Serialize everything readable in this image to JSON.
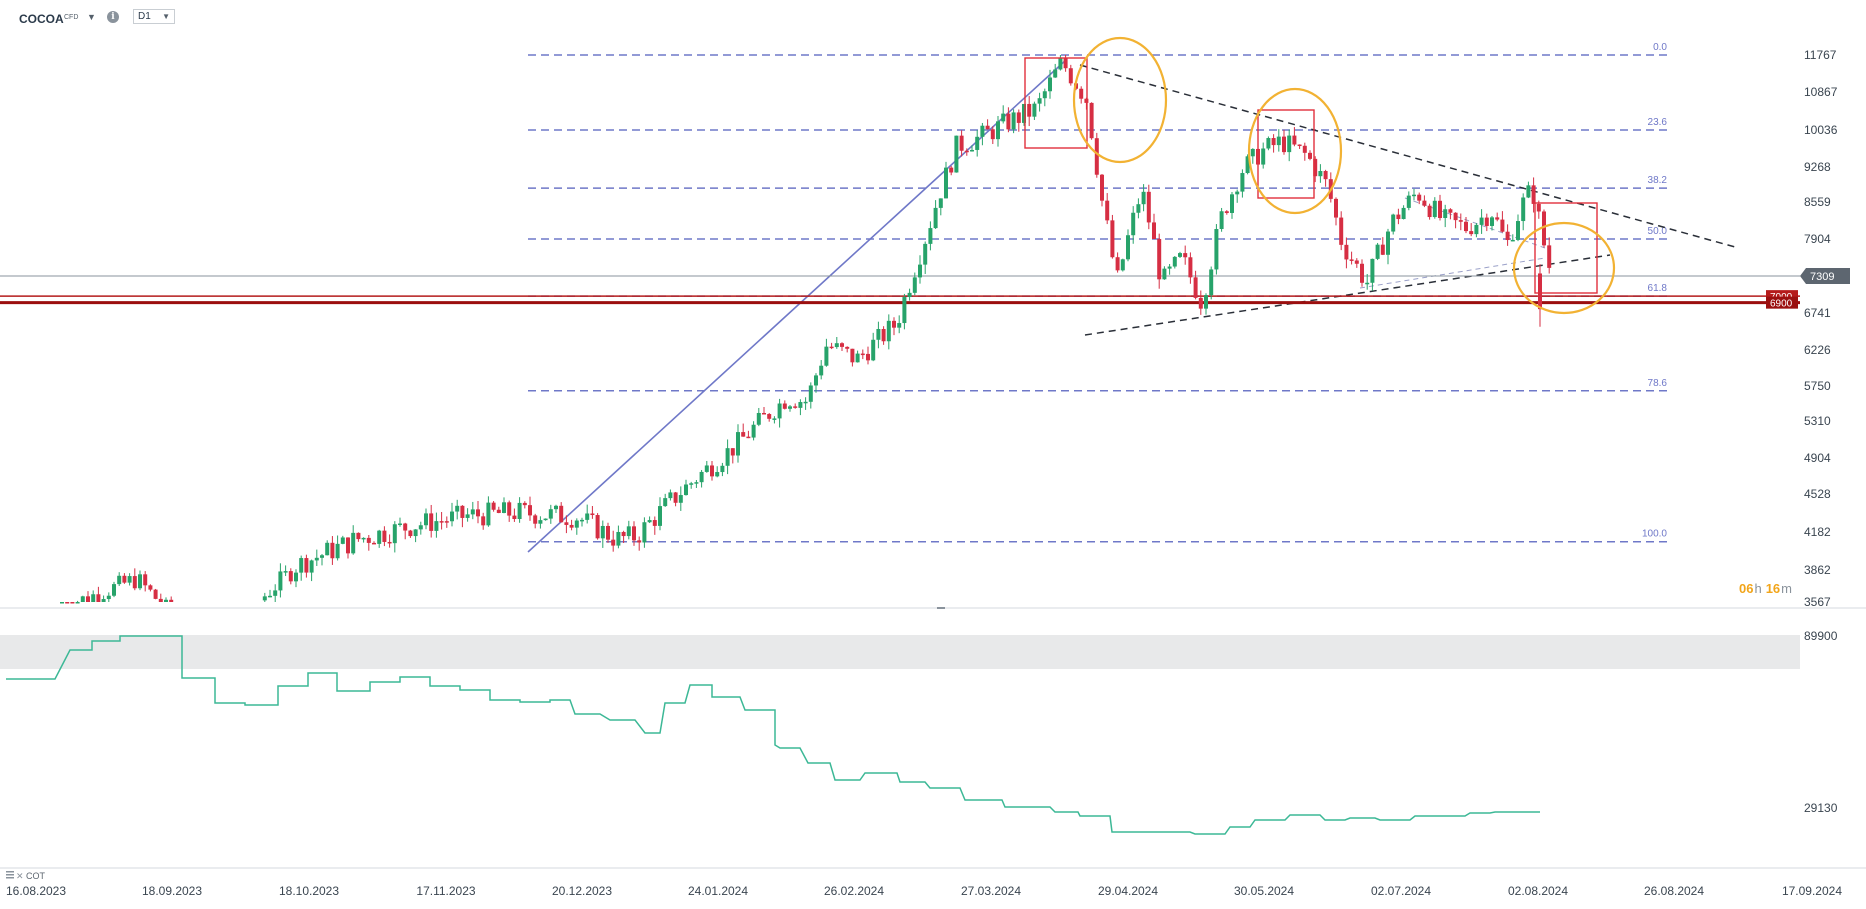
{
  "header": {
    "symbol": "COCOA",
    "symbol_type": "CFD",
    "info_icon": "info-icon",
    "timeframe": "D1"
  },
  "countdown": {
    "hours": "06",
    "h_unit": "h",
    "minutes": "16",
    "m_unit": "m"
  },
  "indicator_label": "COT",
  "chart_data": [
    {
      "type": "candlestick",
      "title": "",
      "y_ticks": [
        11767,
        10867,
        10036,
        9268,
        8559,
        7904,
        6741,
        6226,
        5750,
        5310,
        4904,
        4528,
        4182,
        3862,
        3567
      ],
      "ylim": [
        3567,
        11767
      ],
      "price_tags": [
        {
          "label": "7309",
          "value": 7309,
          "color": "#5d6670"
        },
        {
          "label": "7000",
          "value": 7000,
          "color": "#b51b1b"
        },
        {
          "label": "6900",
          "value": 6900,
          "color": "#9b0f0f"
        }
      ],
      "fibonacci": [
        {
          "label": "0.0",
          "value": 11767
        },
        {
          "label": "23.6",
          "value": 10036
        },
        {
          "label": "38.2",
          "value": 8840
        },
        {
          "label": "50.0",
          "value": 7904
        },
        {
          "label": "61.8",
          "value": 7000
        },
        {
          "label": "78.6",
          "value": 5690
        },
        {
          "label": "100.0",
          "value": 4100
        }
      ],
      "x_ticks": [
        "16.08.2023",
        "18.09.2023",
        "18.10.2023",
        "17.11.2023",
        "20.12.2023",
        "24.01.2024",
        "26.02.2024",
        "27.03.2024",
        "29.04.2024",
        "30.05.2024",
        "02.07.2024",
        "02.08.2024",
        "26.08.2024",
        "17.09.2024"
      ],
      "legend": "none",
      "grid": false
    },
    {
      "type": "line",
      "title": "",
      "series_name": "COT",
      "y_ticks": [
        89900,
        29130
      ],
      "color": "#3cb896"
    }
  ],
  "colors": {
    "bull": "#27a36a",
    "bear": "#d62e43",
    "fib": "#6f78c8",
    "trend": "#2a2f38",
    "circle": "#f2b233",
    "box": "#e0303d"
  }
}
